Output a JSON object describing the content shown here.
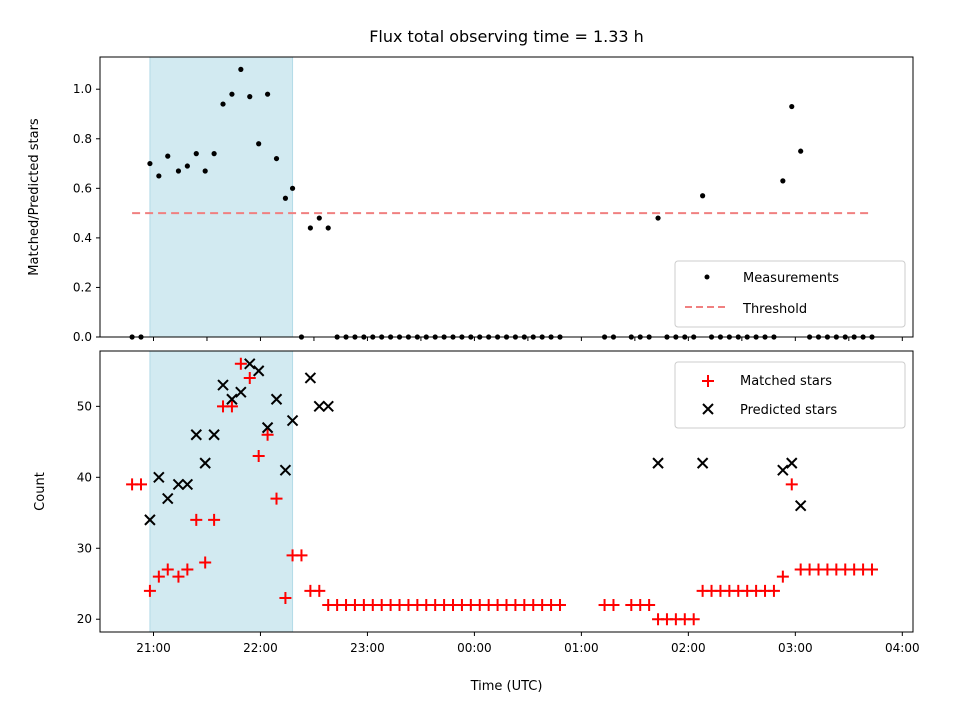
{
  "chart_data": [
    {
      "type": "scatter",
      "title": "Flux total observing time = 1.33 h",
      "xlabel": "",
      "ylabel": "Matched/Predicted stars",
      "xlim": [
        "20:30",
        "04:06"
      ],
      "ylim": [
        0,
        1.13
      ],
      "yticks": [
        "0.0",
        "0.2",
        "0.4",
        "0.6",
        "0.8",
        "1.0"
      ],
      "shaded_region": {
        "x_start": "20:58",
        "x_end": "22:18",
        "color": "#add8e6"
      },
      "legend": {
        "position": "bottom-right"
      },
      "series": [
        {
          "name": "Measurements",
          "marker": "dot",
          "color": "#000000",
          "points": [
            [
              "20:48",
              0
            ],
            [
              "20:53",
              0
            ],
            [
              "20:58",
              0.7
            ],
            [
              "21:03",
              0.65
            ],
            [
              "21:08",
              0.73
            ],
            [
              "21:14",
              0.67
            ],
            [
              "21:19",
              0.69
            ],
            [
              "21:24",
              0.74
            ],
            [
              "21:29",
              0.67
            ],
            [
              "21:34",
              0.74
            ],
            [
              "21:39",
              0.94
            ],
            [
              "21:44",
              0.98
            ],
            [
              "21:49",
              1.08
            ],
            [
              "21:54",
              0.97
            ],
            [
              "21:59",
              0.78
            ],
            [
              "22:04",
              0.98
            ],
            [
              "22:09",
              0.72
            ],
            [
              "22:14",
              0.56
            ],
            [
              "22:18",
              0.6
            ],
            [
              "22:23",
              0.0
            ],
            [
              "22:28",
              0.44
            ],
            [
              "22:33",
              0.48
            ],
            [
              "22:38",
              0.44
            ],
            [
              "22:43",
              0
            ],
            [
              "22:48",
              0
            ],
            [
              "22:53",
              0
            ],
            [
              "22:58",
              0
            ],
            [
              "23:03",
              0
            ],
            [
              "23:08",
              0
            ],
            [
              "23:13",
              0
            ],
            [
              "23:18",
              0
            ],
            [
              "23:23",
              0
            ],
            [
              "23:28",
              0
            ],
            [
              "23:33",
              0
            ],
            [
              "23:38",
              0
            ],
            [
              "23:43",
              0
            ],
            [
              "23:48",
              0
            ],
            [
              "23:53",
              0
            ],
            [
              "23:58",
              0
            ],
            [
              "00:03",
              0
            ],
            [
              "00:08",
              0
            ],
            [
              "00:13",
              0
            ],
            [
              "00:18",
              0
            ],
            [
              "00:23",
              0
            ],
            [
              "00:28",
              0
            ],
            [
              "00:33",
              0
            ],
            [
              "00:38",
              0
            ],
            [
              "00:43",
              0
            ],
            [
              "00:48",
              0
            ],
            [
              "01:13",
              0
            ],
            [
              "01:18",
              0
            ],
            [
              "01:28",
              0
            ],
            [
              "01:33",
              0
            ],
            [
              "01:38",
              0
            ],
            [
              "01:43",
              0.48
            ],
            [
              "01:48",
              0
            ],
            [
              "01:53",
              0
            ],
            [
              "01:58",
              0
            ],
            [
              "02:03",
              0
            ],
            [
              "02:08",
              0.57
            ],
            [
              "02:13",
              0
            ],
            [
              "02:18",
              0
            ],
            [
              "02:23",
              0
            ],
            [
              "02:28",
              0
            ],
            [
              "02:33",
              0
            ],
            [
              "02:38",
              0
            ],
            [
              "02:43",
              0
            ],
            [
              "02:48",
              0
            ],
            [
              "02:53",
              0.63
            ],
            [
              "02:58",
              0.93
            ],
            [
              "03:03",
              0.75
            ],
            [
              "03:08",
              0
            ],
            [
              "03:13",
              0
            ],
            [
              "03:18",
              0
            ],
            [
              "03:23",
              0
            ],
            [
              "03:28",
              0
            ],
            [
              "03:33",
              0
            ],
            [
              "03:38",
              0
            ],
            [
              "03:43",
              0
            ]
          ]
        },
        {
          "name": "Threshold",
          "marker": "dashed-line",
          "color": "#f08080",
          "points": [
            [
              "20:48",
              0.5
            ],
            [
              "03:43",
              0.5
            ]
          ]
        }
      ]
    },
    {
      "type": "scatter",
      "title": "",
      "xlabel": "Time (UTC)",
      "ylabel": "Count",
      "xlim": [
        "20:30",
        "04:06"
      ],
      "ylim": [
        18.2,
        57.8
      ],
      "yticks": [
        "20",
        "30",
        "40",
        "50"
      ],
      "xticks": [
        "21:00",
        "22:00",
        "23:00",
        "00:00",
        "01:00",
        "02:00",
        "03:00",
        "04:00"
      ],
      "shaded_region": {
        "x_start": "20:58",
        "x_end": "22:18",
        "color": "#add8e6"
      },
      "legend": {
        "position": "top-right"
      },
      "series": [
        {
          "name": "Matched stars",
          "marker": "plus",
          "color": "#ff0000",
          "points": [
            [
              "20:48",
              39
            ],
            [
              "20:53",
              39
            ],
            [
              "20:58",
              24
            ],
            [
              "21:03",
              26
            ],
            [
              "21:08",
              27
            ],
            [
              "21:14",
              26
            ],
            [
              "21:19",
              27
            ],
            [
              "21:24",
              34
            ],
            [
              "21:29",
              28
            ],
            [
              "21:34",
              34
            ],
            [
              "21:39",
              50
            ],
            [
              "21:44",
              50
            ],
            [
              "21:49",
              56
            ],
            [
              "21:54",
              54
            ],
            [
              "21:59",
              43
            ],
            [
              "22:04",
              46
            ],
            [
              "22:09",
              37
            ],
            [
              "22:14",
              23
            ],
            [
              "22:18",
              29
            ],
            [
              "22:23",
              29
            ],
            [
              "22:28",
              24
            ],
            [
              "22:33",
              24
            ],
            [
              "22:38",
              22
            ],
            [
              "22:43",
              22
            ],
            [
              "22:48",
              22
            ],
            [
              "22:53",
              22
            ],
            [
              "22:58",
              22
            ],
            [
              "23:03",
              22
            ],
            [
              "23:08",
              22
            ],
            [
              "23:13",
              22
            ],
            [
              "23:18",
              22
            ],
            [
              "23:23",
              22
            ],
            [
              "23:28",
              22
            ],
            [
              "23:33",
              22
            ],
            [
              "23:38",
              22
            ],
            [
              "23:43",
              22
            ],
            [
              "23:48",
              22
            ],
            [
              "23:53",
              22
            ],
            [
              "23:58",
              22
            ],
            [
              "00:03",
              22
            ],
            [
              "00:08",
              22
            ],
            [
              "00:13",
              22
            ],
            [
              "00:18",
              22
            ],
            [
              "00:23",
              22
            ],
            [
              "00:28",
              22
            ],
            [
              "00:33",
              22
            ],
            [
              "00:38",
              22
            ],
            [
              "00:43",
              22
            ],
            [
              "00:48",
              22
            ],
            [
              "01:13",
              22
            ],
            [
              "01:18",
              22
            ],
            [
              "01:28",
              22
            ],
            [
              "01:33",
              22
            ],
            [
              "01:38",
              22
            ],
            [
              "01:43",
              20
            ],
            [
              "01:48",
              20
            ],
            [
              "01:53",
              20
            ],
            [
              "01:58",
              20
            ],
            [
              "02:03",
              20
            ],
            [
              "02:08",
              24
            ],
            [
              "02:13",
              24
            ],
            [
              "02:18",
              24
            ],
            [
              "02:23",
              24
            ],
            [
              "02:28",
              24
            ],
            [
              "02:33",
              24
            ],
            [
              "02:38",
              24
            ],
            [
              "02:43",
              24
            ],
            [
              "02:48",
              24
            ],
            [
              "02:53",
              26
            ],
            [
              "02:58",
              39
            ],
            [
              "03:03",
              27
            ],
            [
              "03:08",
              27
            ],
            [
              "03:13",
              27
            ],
            [
              "03:18",
              27
            ],
            [
              "03:23",
              27
            ],
            [
              "03:28",
              27
            ],
            [
              "03:33",
              27
            ],
            [
              "03:38",
              27
            ],
            [
              "03:43",
              27
            ]
          ]
        },
        {
          "name": "Predicted stars",
          "marker": "x",
          "color": "#000000",
          "points": [
            [
              "20:58",
              34
            ],
            [
              "21:03",
              40
            ],
            [
              "21:08",
              37
            ],
            [
              "21:14",
              39
            ],
            [
              "21:19",
              39
            ],
            [
              "21:24",
              46
            ],
            [
              "21:29",
              42
            ],
            [
              "21:34",
              46
            ],
            [
              "21:39",
              53
            ],
            [
              "21:44",
              51
            ],
            [
              "21:49",
              52
            ],
            [
              "21:54",
              56
            ],
            [
              "21:59",
              55
            ],
            [
              "22:04",
              47
            ],
            [
              "22:09",
              51
            ],
            [
              "22:14",
              41
            ],
            [
              "22:18",
              48
            ],
            [
              "22:28",
              54
            ],
            [
              "22:33",
              50
            ],
            [
              "22:38",
              50
            ],
            [
              "01:43",
              42
            ],
            [
              "02:08",
              42
            ],
            [
              "02:53",
              41
            ],
            [
              "02:58",
              42
            ],
            [
              "03:03",
              36
            ]
          ]
        }
      ]
    }
  ]
}
